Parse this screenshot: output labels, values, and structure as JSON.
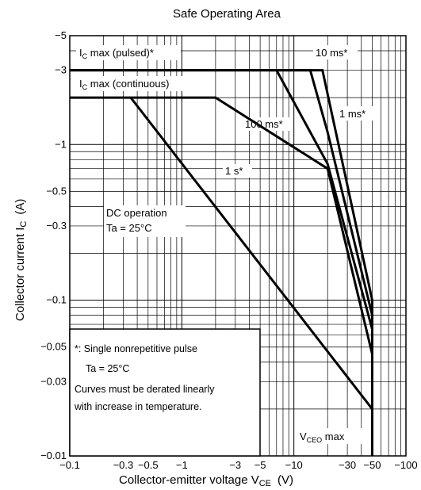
{
  "chart_data": {
    "type": "line",
    "title": "Safe Operating Area",
    "xlabel_main": "Collector-emitter voltage  V",
    "xlabel_sub": "CE",
    "xlabel_unit": "(V)",
    "ylabel_main": "Collector current  I",
    "ylabel_sub": "C",
    "ylabel_unit": "(A)",
    "x_scale": "log",
    "y_scale": "log",
    "xlim": [
      0.1,
      100
    ],
    "ylim": [
      0.01,
      5
    ],
    "x_ticks": [
      {
        "v": 0.1,
        "t": "−0.1"
      },
      {
        "v": 0.3,
        "t": "−0.3"
      },
      {
        "v": 0.5,
        "t": "−0.5"
      },
      {
        "v": 1,
        "t": "−1"
      },
      {
        "v": 3,
        "t": "−3"
      },
      {
        "v": 5,
        "t": "−5"
      },
      {
        "v": 10,
        "t": "−10"
      },
      {
        "v": 30,
        "t": "−30"
      },
      {
        "v": 50,
        "t": "−50"
      },
      {
        "v": 100,
        "t": "−100"
      }
    ],
    "y_ticks": [
      {
        "v": 5,
        "t": "−5"
      },
      {
        "v": 3,
        "t": "−3"
      },
      {
        "v": 1,
        "t": "−1"
      },
      {
        "v": 0.5,
        "t": "−0.5"
      },
      {
        "v": 0.3,
        "t": "−0.3"
      },
      {
        "v": 0.1,
        "t": "−0.1"
      },
      {
        "v": 0.05,
        "t": "−0.05"
      },
      {
        "v": 0.03,
        "t": "−0.03"
      },
      {
        "v": 0.01,
        "t": "−0.01"
      }
    ],
    "grid": true,
    "series": [
      {
        "name": "10 ms*",
        "points": [
          [
            0.1,
            3
          ],
          [
            14,
            3
          ],
          [
            20,
            1.2
          ],
          [
            50,
            0.08
          ]
        ]
      },
      {
        "name": "1 ms*",
        "points": [
          [
            0.1,
            3
          ],
          [
            18,
            3
          ],
          [
            50,
            0.1
          ]
        ]
      },
      {
        "name": "100 ms*",
        "points": [
          [
            7,
            3
          ],
          [
            20,
            0.75
          ],
          [
            50,
            0.065
          ]
        ]
      },
      {
        "name": "1 s*",
        "points": [
          [
            0.1,
            2
          ],
          [
            2,
            2
          ],
          [
            20,
            0.7
          ],
          [
            50,
            0.045
          ]
        ]
      },
      {
        "name": "DC operation",
        "points": [
          [
            0.35,
            2
          ],
          [
            50,
            0.02
          ]
        ]
      }
    ],
    "vceo_line": {
      "x": 50,
      "y_range": [
        0.01,
        0.1
      ]
    },
    "annotations": [
      {
        "id": "ic-pulsed",
        "main": "I",
        "sub": "C",
        "rest": " max (pulsed)*"
      },
      {
        "id": "ic-continuous",
        "main": "I",
        "sub": "C",
        "rest": " max (continuous)"
      },
      {
        "id": "label-10ms",
        "text": "10 ms*"
      },
      {
        "id": "label-1ms",
        "text": "1 ms*"
      },
      {
        "id": "label-100ms",
        "text": "100 ms*"
      },
      {
        "id": "label-1s",
        "text": "1 s*"
      },
      {
        "id": "label-dc",
        "text": "DC operation"
      },
      {
        "id": "label-ta1",
        "text": "Ta = 25°C"
      },
      {
        "id": "vceo",
        "main": "V",
        "sub": "CEO",
        "rest": " max"
      }
    ],
    "note": {
      "line1": "*: Single nonrepetitive pulse",
      "line2": "Ta = 25°C",
      "line3": "Curves must be derated linearly",
      "line4": "with increase in temperature."
    }
  }
}
